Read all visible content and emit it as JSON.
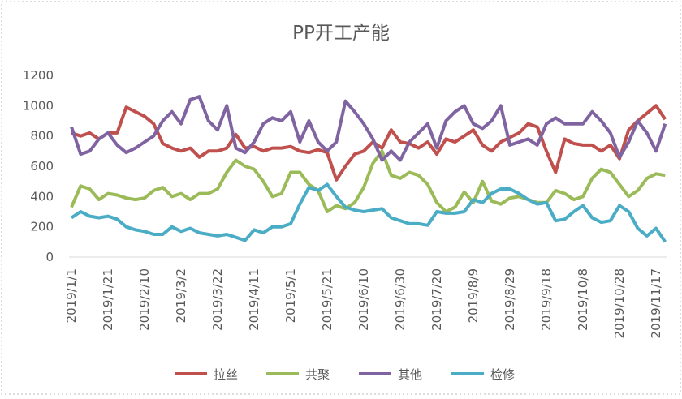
{
  "chart_data": {
    "type": "line",
    "title": "PP开工产能",
    "categories": [
      "2019/1/1",
      null,
      null,
      null,
      "2019/1/21",
      null,
      null,
      null,
      "2019/2/10",
      null,
      null,
      null,
      "2019/3/2",
      null,
      null,
      null,
      "2019/3/22",
      null,
      null,
      null,
      "2019/4/11",
      null,
      null,
      null,
      "2019/5/1",
      null,
      null,
      null,
      "2019/5/21",
      null,
      null,
      null,
      "2019/6/10",
      null,
      null,
      null,
      "2019/6/30",
      null,
      null,
      null,
      "2019/7/20",
      null,
      null,
      null,
      "2019/8/9",
      null,
      null,
      null,
      "2019/8/29",
      null,
      null,
      null,
      "2019/9/18",
      null,
      null,
      null,
      "2019/10/8",
      null,
      null,
      null,
      "2019/10/28",
      null,
      null,
      null,
      "2019/11/17",
      null
    ],
    "series": [
      {
        "name": "拉丝",
        "color": "#c0504d",
        "values": [
          820,
          800,
          820,
          780,
          820,
          820,
          990,
          960,
          930,
          880,
          750,
          720,
          700,
          720,
          660,
          700,
          700,
          720,
          810,
          720,
          730,
          700,
          720,
          720,
          730,
          700,
          690,
          710,
          690,
          510,
          600,
          680,
          700,
          760,
          720,
          840,
          760,
          750,
          720,
          760,
          680,
          780,
          760,
          800,
          840,
          740,
          700,
          760,
          790,
          820,
          880,
          860,
          700,
          560,
          780,
          750,
          740,
          740,
          700,
          740,
          650,
          840,
          900,
          950,
          1000,
          910
        ]
      },
      {
        "name": "共聚",
        "color": "#9bbb59",
        "values": [
          330,
          470,
          450,
          380,
          420,
          410,
          390,
          380,
          390,
          440,
          460,
          400,
          420,
          380,
          420,
          420,
          450,
          560,
          640,
          600,
          580,
          500,
          400,
          420,
          560,
          560,
          480,
          440,
          300,
          340,
          320,
          360,
          460,
          620,
          700,
          540,
          520,
          560,
          540,
          480,
          360,
          300,
          330,
          430,
          360,
          500,
          370,
          350,
          390,
          400,
          380,
          360,
          360,
          440,
          420,
          380,
          400,
          520,
          580,
          560,
          480,
          400,
          440,
          520,
          550,
          540
        ]
      },
      {
        "name": "其他",
        "color": "#8064a2",
        "values": [
          860,
          680,
          700,
          780,
          820,
          740,
          690,
          720,
          760,
          800,
          900,
          960,
          880,
          1040,
          1060,
          900,
          840,
          1000,
          720,
          690,
          760,
          880,
          920,
          900,
          960,
          760,
          900,
          760,
          700,
          760,
          1030,
          960,
          880,
          780,
          640,
          700,
          640,
          760,
          820,
          880,
          720,
          900,
          960,
          1000,
          880,
          850,
          900,
          1000,
          740,
          760,
          780,
          740,
          880,
          920,
          880,
          880,
          880,
          960,
          900,
          820,
          660,
          760,
          900,
          820,
          700,
          880
        ]
      },
      {
        "name": "检修",
        "color": "#4bacc6",
        "values": [
          260,
          300,
          270,
          260,
          270,
          250,
          200,
          180,
          170,
          150,
          150,
          200,
          170,
          190,
          160,
          150,
          140,
          150,
          130,
          110,
          180,
          160,
          200,
          200,
          220,
          350,
          460,
          440,
          480,
          400,
          330,
          310,
          300,
          310,
          320,
          260,
          240,
          220,
          220,
          210,
          300,
          290,
          290,
          300,
          380,
          360,
          420,
          450,
          450,
          420,
          380,
          350,
          360,
          240,
          250,
          300,
          340,
          260,
          230,
          240,
          340,
          300,
          190,
          140,
          190,
          100
        ]
      }
    ],
    "ylim": [
      0,
      1200
    ],
    "yticks": [
      0,
      200,
      400,
      600,
      800,
      1000,
      1200
    ],
    "grid": false,
    "legend": "bottom"
  }
}
